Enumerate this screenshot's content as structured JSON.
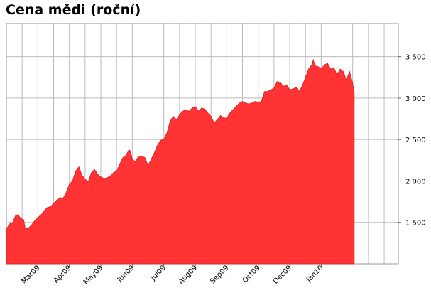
{
  "page": {
    "title": "Cena mědi (roční)"
  },
  "chart_data": {
    "type": "area",
    "title": "Cena mědi (roční)",
    "xlabel": "",
    "ylabel": "",
    "x_range": [
      0,
      12.45
    ],
    "ylim": [
      1000,
      3900
    ],
    "y_ticks": [
      1500,
      2000,
      2500,
      3000,
      3500
    ],
    "y_tick_labels": [
      "1 500",
      "2 000",
      "2 500",
      "3 000",
      "3 500"
    ],
    "x_ticks": [
      {
        "label": "Mar09",
        "pos": 1.0
      },
      {
        "label": "Apr09",
        "pos": 2.0
      },
      {
        "label": "May09",
        "pos": 3.0
      },
      {
        "label": "Jun09",
        "pos": 4.0
      },
      {
        "label": "Jul09",
        "pos": 5.0
      },
      {
        "label": "Aug09",
        "pos": 6.0
      },
      {
        "label": "Sep09",
        "pos": 7.0
      },
      {
        "label": "Oct09",
        "pos": 8.0
      },
      {
        "label": "Dec09",
        "pos": 9.0
      },
      {
        "label": "Jan10",
        "pos": 10.0
      }
    ],
    "fill_color": "#ff3333",
    "grid": true,
    "y_axis_position": "right",
    "series": [
      {
        "values": [
          [
            0.0,
            1420
          ],
          [
            0.1,
            1480
          ],
          [
            0.2,
            1500
          ],
          [
            0.3,
            1590
          ],
          [
            0.38,
            1590
          ],
          [
            0.45,
            1550
          ],
          [
            0.55,
            1530
          ],
          [
            0.6,
            1420
          ],
          [
            0.7,
            1430
          ],
          [
            0.8,
            1470
          ],
          [
            0.9,
            1520
          ],
          [
            1.0,
            1560
          ],
          [
            1.1,
            1590
          ],
          [
            1.2,
            1640
          ],
          [
            1.3,
            1680
          ],
          [
            1.4,
            1690
          ],
          [
            1.5,
            1730
          ],
          [
            1.6,
            1770
          ],
          [
            1.7,
            1800
          ],
          [
            1.8,
            1790
          ],
          [
            1.9,
            1860
          ],
          [
            2.0,
            1960
          ],
          [
            2.1,
            2000
          ],
          [
            2.2,
            2120
          ],
          [
            2.3,
            2170
          ],
          [
            2.4,
            2070
          ],
          [
            2.5,
            2020
          ],
          [
            2.6,
            1990
          ],
          [
            2.7,
            2100
          ],
          [
            2.8,
            2140
          ],
          [
            2.9,
            2080
          ],
          [
            3.0,
            2050
          ],
          [
            3.1,
            2030
          ],
          [
            3.2,
            2040
          ],
          [
            3.3,
            2060
          ],
          [
            3.4,
            2100
          ],
          [
            3.5,
            2120
          ],
          [
            3.6,
            2200
          ],
          [
            3.7,
            2280
          ],
          [
            3.8,
            2310
          ],
          [
            3.9,
            2380
          ],
          [
            3.95,
            2350
          ],
          [
            4.0,
            2260
          ],
          [
            4.1,
            2230
          ],
          [
            4.2,
            2300
          ],
          [
            4.3,
            2300
          ],
          [
            4.4,
            2280
          ],
          [
            4.5,
            2190
          ],
          [
            4.6,
            2260
          ],
          [
            4.7,
            2340
          ],
          [
            4.8,
            2430
          ],
          [
            4.9,
            2490
          ],
          [
            5.0,
            2500
          ],
          [
            5.1,
            2580
          ],
          [
            5.2,
            2720
          ],
          [
            5.3,
            2780
          ],
          [
            5.4,
            2740
          ],
          [
            5.5,
            2800
          ],
          [
            5.6,
            2840
          ],
          [
            5.7,
            2860
          ],
          [
            5.8,
            2840
          ],
          [
            5.9,
            2880
          ],
          [
            6.0,
            2900
          ],
          [
            6.1,
            2840
          ],
          [
            6.2,
            2880
          ],
          [
            6.3,
            2870
          ],
          [
            6.4,
            2820
          ],
          [
            6.5,
            2780
          ],
          [
            6.6,
            2700
          ],
          [
            6.7,
            2740
          ],
          [
            6.8,
            2790
          ],
          [
            6.9,
            2760
          ],
          [
            7.0,
            2760
          ],
          [
            7.1,
            2820
          ],
          [
            7.2,
            2860
          ],
          [
            7.3,
            2900
          ],
          [
            7.4,
            2940
          ],
          [
            7.5,
            2960
          ],
          [
            7.6,
            2940
          ],
          [
            7.7,
            2930
          ],
          [
            7.8,
            2940
          ],
          [
            7.9,
            2960
          ],
          [
            8.0,
            2950
          ],
          [
            8.1,
            2960
          ],
          [
            8.2,
            3080
          ],
          [
            8.3,
            3080
          ],
          [
            8.4,
            3100
          ],
          [
            8.5,
            3120
          ],
          [
            8.6,
            3200
          ],
          [
            8.7,
            3190
          ],
          [
            8.8,
            3140
          ],
          [
            8.9,
            3160
          ],
          [
            9.0,
            3100
          ],
          [
            9.1,
            3110
          ],
          [
            9.2,
            3130
          ],
          [
            9.3,
            3080
          ],
          [
            9.4,
            3150
          ],
          [
            9.5,
            3250
          ],
          [
            9.6,
            3350
          ],
          [
            9.7,
            3400
          ],
          [
            9.75,
            3460
          ],
          [
            9.8,
            3390
          ],
          [
            9.9,
            3380
          ],
          [
            10.0,
            3350
          ],
          [
            10.1,
            3400
          ],
          [
            10.2,
            3420
          ],
          [
            10.3,
            3350
          ],
          [
            10.4,
            3370
          ],
          [
            10.5,
            3280
          ],
          [
            10.6,
            3350
          ],
          [
            10.7,
            3320
          ],
          [
            10.8,
            3220
          ],
          [
            10.9,
            3320
          ],
          [
            11.0,
            3180
          ],
          [
            11.05,
            3060
          ]
        ]
      }
    ]
  }
}
